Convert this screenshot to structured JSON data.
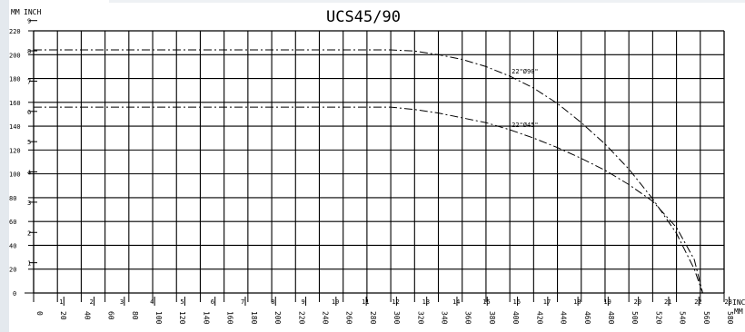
{
  "chart_data": {
    "type": "line",
    "title": "UCS45/90",
    "ylabel_units": [
      "MM",
      "INCH"
    ],
    "xlabel_units": [
      "INCH",
      "MM"
    ],
    "xlim": [
      0,
      580
    ],
    "ylim": [
      0,
      220
    ],
    "x_ticks_mm": [
      "0",
      "20",
      "40",
      "60",
      "80",
      "100",
      "120",
      "140",
      "160",
      "180",
      "200",
      "220",
      "240",
      "260",
      "280",
      "300",
      "320",
      "340",
      "360",
      "380",
      "400",
      "420",
      "440",
      "460",
      "480",
      "500",
      "520",
      "540",
      "560",
      "580"
    ],
    "x_ticks_inch": [
      "1",
      "2",
      "3",
      "4",
      "5",
      "6",
      "7",
      "8",
      "9",
      "10",
      "11",
      "12",
      "13",
      "14",
      "15",
      "16",
      "17",
      "18",
      "19",
      "20",
      "21",
      "22",
      "23"
    ],
    "y_ticks_mm": [
      "20",
      "40",
      "60",
      "80",
      "100",
      "120",
      "140",
      "160",
      "180",
      "200",
      "220"
    ],
    "y_ticks_inch": [
      "1",
      "2",
      "3",
      "4",
      "5",
      "6",
      "7",
      "8",
      "9"
    ],
    "y_zero_label": "0",
    "grid": true,
    "series": [
      {
        "name": "22\"Ø90\"",
        "points": [
          [
            0,
            204
          ],
          [
            100,
            204
          ],
          [
            200,
            204
          ],
          [
            300,
            204
          ],
          [
            320,
            203
          ],
          [
            340,
            200
          ],
          [
            360,
            196
          ],
          [
            380,
            190
          ],
          [
            400,
            182
          ],
          [
            420,
            172
          ],
          [
            440,
            159
          ],
          [
            460,
            143
          ],
          [
            480,
            125
          ],
          [
            500,
            104
          ],
          [
            520,
            79
          ],
          [
            540,
            50
          ],
          [
            555,
            20
          ],
          [
            562,
            0
          ]
        ]
      },
      {
        "name": "22\"Ø45\"",
        "points": [
          [
            0,
            156
          ],
          [
            100,
            156
          ],
          [
            200,
            156
          ],
          [
            300,
            156
          ],
          [
            320,
            154
          ],
          [
            340,
            151
          ],
          [
            360,
            147
          ],
          [
            380,
            143
          ],
          [
            400,
            137
          ],
          [
            420,
            130
          ],
          [
            440,
            122
          ],
          [
            460,
            113
          ],
          [
            480,
            103
          ],
          [
            500,
            91
          ],
          [
            520,
            77
          ],
          [
            540,
            55
          ],
          [
            555,
            28
          ],
          [
            562,
            0
          ]
        ]
      }
    ]
  }
}
